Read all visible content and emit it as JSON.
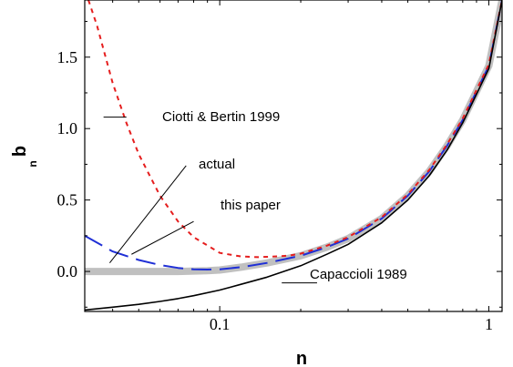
{
  "chart_data": {
    "type": "line",
    "xlabel": "n",
    "ylabel": "b",
    "ylabel_sub": "n",
    "x_scale": "log",
    "xlim": [
      0.0315,
      1.12
    ],
    "ylim": [
      -0.28,
      1.9
    ],
    "x_ticks": [
      {
        "value": 0.1,
        "label": "0.1"
      },
      {
        "value": 1,
        "label": "1"
      }
    ],
    "y_ticks": [
      {
        "value": 0.0,
        "label": "0.0"
      },
      {
        "value": 0.5,
        "label": "0.5"
      },
      {
        "value": 1.0,
        "label": "1.0"
      },
      {
        "value": 1.5,
        "label": "1.5"
      }
    ],
    "series": [
      {
        "name": "actual",
        "color": "#c0c0c0",
        "style": "thick",
        "x": [
          0.0315,
          0.05,
          0.07,
          0.09,
          0.1,
          0.12,
          0.15,
          0.2,
          0.25,
          0.3,
          0.4,
          0.5,
          0.6,
          0.7,
          0.8,
          1.0,
          1.12
        ],
        "y": [
          0.0,
          0.0,
          0.0,
          0.005,
          0.01,
          0.03,
          0.06,
          0.11,
          0.17,
          0.23,
          0.37,
          0.53,
          0.7,
          0.88,
          1.06,
          1.44,
          1.9
        ]
      },
      {
        "name": "this paper",
        "color": "#1f2fd6",
        "style": "long-dash",
        "x": [
          0.0315,
          0.04,
          0.05,
          0.06,
          0.07,
          0.08,
          0.09,
          0.1,
          0.12,
          0.15,
          0.2,
          0.25,
          0.3,
          0.4,
          0.5,
          0.6,
          0.7,
          0.8,
          1.0,
          1.12
        ],
        "y": [
          0.25,
          0.14,
          0.08,
          0.045,
          0.025,
          0.015,
          0.013,
          0.015,
          0.03,
          0.06,
          0.11,
          0.17,
          0.23,
          0.37,
          0.53,
          0.7,
          0.88,
          1.06,
          1.44,
          1.9
        ]
      },
      {
        "name": "Ciotti & Bertin 1999",
        "color": "#e51e1e",
        "style": "short-dash",
        "x": [
          0.0325,
          0.035,
          0.04,
          0.045,
          0.05,
          0.06,
          0.07,
          0.08,
          0.1,
          0.12,
          0.14,
          0.16,
          0.18,
          0.2,
          0.25,
          0.3,
          0.4,
          0.5,
          0.6,
          0.7,
          0.8,
          1.0,
          1.12
        ],
        "y": [
          1.9,
          1.72,
          1.32,
          1.04,
          0.82,
          0.53,
          0.35,
          0.24,
          0.13,
          0.105,
          0.1,
          0.105,
          0.11,
          0.125,
          0.18,
          0.24,
          0.38,
          0.54,
          0.71,
          0.89,
          1.07,
          1.45,
          1.9
        ]
      },
      {
        "name": "Capaccioli 1989",
        "color": "#000000",
        "style": "solid",
        "x": [
          0.0315,
          0.04,
          0.05,
          0.06,
          0.07,
          0.08,
          0.1,
          0.12,
          0.15,
          0.2,
          0.25,
          0.3,
          0.4,
          0.5,
          0.6,
          0.7,
          0.8,
          1.0,
          1.12
        ],
        "y": [
          -0.27,
          -0.25,
          -0.23,
          -0.21,
          -0.19,
          -0.17,
          -0.13,
          -0.09,
          -0.04,
          0.04,
          0.12,
          0.19,
          0.34,
          0.5,
          0.67,
          0.85,
          1.04,
          1.42,
          1.9
        ]
      }
    ],
    "annotations": [
      {
        "text": "Ciotti & Bertin 1999",
        "leader_from": [
          0.037,
          1.08
        ],
        "leader_to": [
          0.045,
          1.08
        ]
      },
      {
        "text": "actual",
        "leader_from": [
          0.039,
          0.06
        ],
        "leader_to": [
          0.075,
          0.74
        ]
      },
      {
        "text": "this paper",
        "leader_from": [
          0.047,
          0.12
        ],
        "leader_to": [
          0.08,
          0.35
        ]
      },
      {
        "text": "Capaccioli 1989",
        "leader_from": [
          0.17,
          -0.08
        ],
        "leader_to": [
          0.23,
          -0.08
        ]
      }
    ]
  }
}
